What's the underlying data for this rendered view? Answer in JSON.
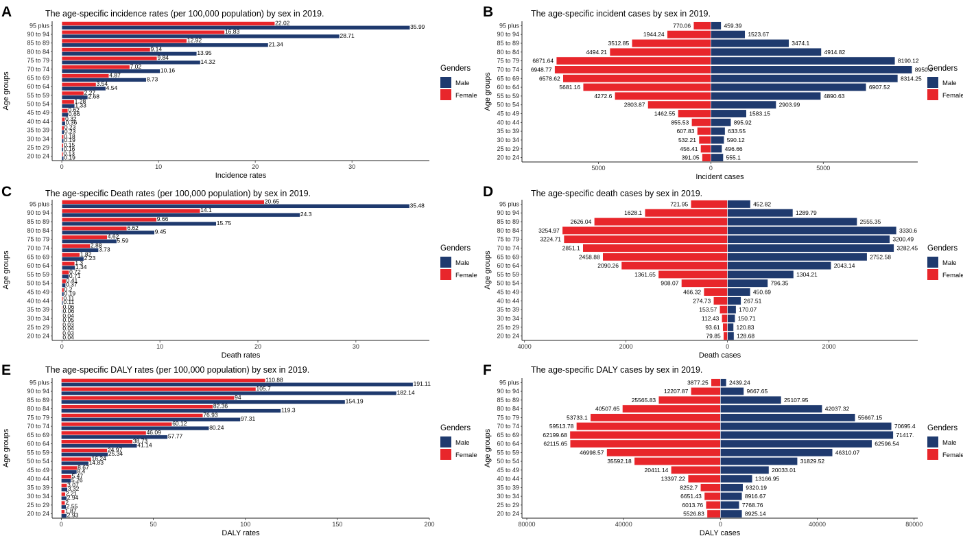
{
  "colors": {
    "male": "#1f3a6e",
    "female": "#e8262b"
  },
  "chart_data": [
    {
      "panel_label": "A",
      "type": "bar",
      "orientation": "horizontal",
      "layout": "grouped",
      "title": "The age-specific incidence rates (per 100,000 population) by sex in 2019.",
      "xlabel": "Incidence rates",
      "ylabel": "Age groups",
      "xlim": [
        -1,
        38
      ],
      "xticks": [
        0,
        10,
        20,
        30
      ],
      "xtick_labels": [
        "0",
        "10",
        "20",
        "30"
      ],
      "legend": {
        "title": "Genders",
        "items": [
          "Male",
          "Female"
        ],
        "position": "right"
      },
      "categories": [
        "95 plus",
        "90 to 94",
        "85 to 89",
        "80 to 84",
        "75 to 79",
        "70 to 74",
        "65 to 69",
        "60 to 64",
        "55 to 59",
        "50 to 54",
        "45 to 49",
        "40 to 44",
        "35 to 39",
        "30 to 34",
        "25 to 29",
        "20 to 24"
      ],
      "series": [
        {
          "name": "Female",
          "values": [
            22.02,
            16.83,
            12.92,
            9.14,
            9.84,
            7.02,
            4.87,
            3.54,
            2.27,
            1.28,
            0.62,
            0.32,
            0.23,
            0.18,
            0.15,
            0.13
          ],
          "labels": [
            "22.02",
            "16.83",
            "12.92",
            "9.14",
            "9.84",
            "7.02",
            "4.87",
            "3.54",
            "2.27",
            "1.28",
            "0.62",
            "0.32",
            "0.23",
            "0.18",
            "0.15",
            "0.13"
          ]
        },
        {
          "name": "Male",
          "values": [
            35.99,
            28.71,
            21.34,
            13.95,
            14.32,
            10.16,
            8.73,
            4.54,
            2.68,
            1.33,
            0.66,
            0.36,
            0.23,
            0.19,
            0.16,
            0.19
          ],
          "labels": [
            "35.99",
            "28.71",
            "21.34",
            "13.95",
            "14.32",
            "10.16",
            "8.73",
            "4.54",
            "2.68",
            "1.33",
            "0.66",
            "0.36",
            "0.23",
            "0.19",
            "0.16",
            "0.19"
          ]
        }
      ]
    },
    {
      "panel_label": "B",
      "type": "bar",
      "orientation": "horizontal",
      "layout": "pyramid",
      "title": "The age-specific incident cases by sex in 2019.",
      "xlabel": "Incident cases",
      "ylabel": "Age groups",
      "xlim": [
        -8400,
        9200
      ],
      "xticks": [
        -5000,
        0,
        5000
      ],
      "xtick_labels": [
        "5000",
        "0",
        "5000"
      ],
      "legend": {
        "title": "Genders",
        "items": [
          "Male",
          "Female"
        ],
        "position": "right"
      },
      "categories": [
        "95 plus",
        "90 to 94",
        "85 to 89",
        "80 to 84",
        "75 to 79",
        "70 to 74",
        "65 to 69",
        "60 to 64",
        "55 to 59",
        "50 to 54",
        "45 to 49",
        "40 to 44",
        "35 to 39",
        "30 to 34",
        "25 to 29",
        "20 to 24"
      ],
      "series": [
        {
          "name": "Female",
          "values": [
            770.06,
            1944.24,
            3512.85,
            4494.21,
            6871.64,
            6948.77,
            6578.62,
            5681.16,
            4272.6,
            2803.87,
            1462.55,
            855.53,
            607.83,
            532.21,
            456.41,
            391.05
          ],
          "labels": [
            "770.06",
            "1944.24",
            "3512.85",
            "4494.21",
            "6871.64",
            "6948.77",
            "6578.62",
            "5681.16",
            "4272.6",
            "2803.87",
            "1462.55",
            "855.53",
            "607.83",
            "532.21",
            "456.41",
            "391.05"
          ]
        },
        {
          "name": "Male",
          "values": [
            459.39,
            1523.67,
            3474.1,
            4914.82,
            8190.12,
            8950.0,
            8314.25,
            6907.52,
            4890.63,
            2903.99,
            1583.15,
            895.92,
            633.55,
            590.12,
            496.66,
            555.1
          ],
          "labels": [
            "459.39",
            "1523.67",
            "3474.1",
            "4914.82",
            "8190.12",
            "8950.0",
            "8314.25",
            "6907.52",
            "4890.63",
            "2903.99",
            "1583.15",
            "895.92",
            "633.55",
            "590.12",
            "496.66",
            "555.1"
          ]
        }
      ]
    },
    {
      "panel_label": "C",
      "type": "bar",
      "orientation": "horizontal",
      "layout": "grouped",
      "title": "The age-specific Death rates (per 100,000 population) by sex in 2019.",
      "xlabel": "Death rates",
      "ylabel": "Age groups",
      "xlim": [
        -1,
        37.5
      ],
      "xticks": [
        0,
        10,
        20,
        30
      ],
      "xtick_labels": [
        "0",
        "10",
        "20",
        "30"
      ],
      "legend": {
        "title": "Genders",
        "items": [
          "Male",
          "Female"
        ],
        "position": "right"
      },
      "categories": [
        "95 plus",
        "90 to 94",
        "85 to 89",
        "80 to 84",
        "75 to 79",
        "70 to 74",
        "65 to 69",
        "60 to 64",
        "55 to 59",
        "50 to 54",
        "45 to 49",
        "40 to 44",
        "35 to 39",
        "30 to 34",
        "25 to 29",
        "20 to 24"
      ],
      "series": [
        {
          "name": "Female",
          "values": [
            20.65,
            14.1,
            9.66,
            6.62,
            4.62,
            2.88,
            1.82,
            1.3,
            0.72,
            0.41,
            0.2,
            0.11,
            0.06,
            0.04,
            0.03,
            0.03
          ],
          "labels": [
            "20.65",
            "14.1",
            "9.66",
            "6.62",
            "4.62",
            "2.88",
            "1.82",
            "1.3",
            "0.72",
            "0.41",
            "0.2",
            "0.11",
            "0.06",
            "0.04",
            "0.03",
            "0.03"
          ]
        },
        {
          "name": "Male",
          "values": [
            35.48,
            24.3,
            15.75,
            9.45,
            5.59,
            3.73,
            2.23,
            1.34,
            0.71,
            0.37,
            0.19,
            0.11,
            0.06,
            0.05,
            0.04,
            0.04
          ],
          "labels": [
            "35.48",
            "24.3",
            "15.75",
            "9.45",
            "5.59",
            "3.73",
            "2.23",
            "1.34",
            "0.71",
            "0.37",
            "0.19",
            "0.11",
            "0.06",
            "0.05",
            "0.04",
            "0.04"
          ]
        }
      ]
    },
    {
      "panel_label": "D",
      "type": "bar",
      "orientation": "horizontal",
      "layout": "pyramid",
      "title": "The age-specific death cases by sex in 2019.",
      "xlabel": "Death cases",
      "ylabel": "Age groups",
      "xlim": [
        -4050,
        3750
      ],
      "xticks": [
        -4000,
        -2000,
        0,
        2000
      ],
      "xtick_labels": [
        "4000",
        "2000",
        "0",
        "2000"
      ],
      "legend": {
        "title": "Genders",
        "items": [
          "Male",
          "Female"
        ],
        "position": "right"
      },
      "categories": [
        "95 plus",
        "90 to 94",
        "85 to 89",
        "80 to 84",
        "75 to 79",
        "70 to 74",
        "65 to 69",
        "60 to 64",
        "55 to 59",
        "50 to 54",
        "45 to 49",
        "40 to 44",
        "35 to 39",
        "30 to 34",
        "25 to 29",
        "20 to 24"
      ],
      "series": [
        {
          "name": "Female",
          "values": [
            721.95,
            1628.1,
            2626.04,
            3254.97,
            3224.71,
            2851.1,
            2458.88,
            2090.26,
            1361.65,
            908.07,
            466.32,
            274.73,
            153.57,
            112.43,
            93.61,
            79.85
          ],
          "labels": [
            "721.95",
            "1628.1",
            "2626.04",
            "3254.97",
            "3224.71",
            "2851.1",
            "2458.88",
            "2090.26",
            "1361.65",
            "908.07",
            "466.32",
            "274.73",
            "153.57",
            "112.43",
            "93.61",
            "79.85"
          ]
        },
        {
          "name": "Male",
          "values": [
            452.82,
            1289.79,
            2555.35,
            3330.6,
            3200.49,
            3282.45,
            2752.58,
            2043.14,
            1304.21,
            796.35,
            450.69,
            267.51,
            170.07,
            150.71,
            120.83,
            128.68
          ],
          "labels": [
            "452.82",
            "1289.79",
            "2555.35",
            "3330.6",
            "3200.49",
            "3282.45",
            "2752.58",
            "2043.14",
            "1304.21",
            "796.35",
            "450.69",
            "267.51",
            "170.07",
            "150.71",
            "120.83",
            "128.68"
          ]
        }
      ]
    },
    {
      "panel_label": "E",
      "type": "bar",
      "orientation": "horizontal",
      "layout": "grouped",
      "title": "The age-specific DALY rates (per 100,000 population) by sex in 2019.",
      "xlabel": "DALY rates",
      "ylabel": "Age groups",
      "xlim": [
        -5,
        200
      ],
      "xticks": [
        0,
        50,
        100,
        150,
        200
      ],
      "xtick_labels": [
        "0",
        "50",
        "100",
        "150",
        "200"
      ],
      "legend": {
        "title": "Genders",
        "items": [
          "Male",
          "Female"
        ],
        "position": "right"
      },
      "categories": [
        "95 plus",
        "90 to 94",
        "85 to 89",
        "80 to 84",
        "75 to 79",
        "70 to 74",
        "65 to 69",
        "60 to 64",
        "55 to 59",
        "50 to 54",
        "45 to 49",
        "40 to 44",
        "35 to 39",
        "30 to 34",
        "25 to 29",
        "20 to 24"
      ],
      "series": [
        {
          "name": "Female",
          "values": [
            110.88,
            105.7,
            94,
            82.36,
            76.93,
            60.12,
            46.09,
            38.73,
            24.97,
            16.24,
            8.67,
            5.47,
            3.07,
            2.21,
            2,
            1.87
          ],
          "labels": [
            "110.88",
            "105.7",
            "94",
            "82.36",
            "76.93",
            "60.12",
            "46.09",
            "38.73",
            "24.97",
            "16.24",
            "8.67",
            "5.47",
            "3.07",
            "2.21",
            "2",
            "1.87"
          ]
        },
        {
          "name": "Male",
          "values": [
            191.11,
            182.14,
            154.19,
            119.3,
            97.31,
            80.24,
            57.77,
            41.14,
            25.34,
            14.83,
            8.4,
            5.26,
            3.32,
            2.94,
            2.55,
            2.93
          ],
          "labels": [
            "191.11",
            "182.14",
            "154.19",
            "119.3",
            "97.31",
            "80.24",
            "57.77",
            "41.14",
            "25.34",
            "14.83",
            "8.4",
            "5.26",
            "3.32",
            "2.94",
            "2.55",
            "2.93"
          ]
        }
      ]
    },
    {
      "panel_label": "F",
      "type": "bar",
      "orientation": "horizontal",
      "layout": "pyramid",
      "title": "The age-specific DALY cases by sex in 2019.",
      "xlabel": "DALY cases",
      "ylabel": "Age groups",
      "xlim": [
        -82000,
        81500
      ],
      "xticks": [
        -80000,
        -40000,
        0,
        40000,
        80000
      ],
      "xtick_labels": [
        "80000",
        "40000",
        "0",
        "40000",
        "80000"
      ],
      "legend": {
        "title": "Genders",
        "items": [
          "Male",
          "Female"
        ],
        "position": "right"
      },
      "categories": [
        "95 plus",
        "90 to 94",
        "85 to 89",
        "80 to 84",
        "75 to 79",
        "70 to 74",
        "65 to 69",
        "60 to 64",
        "55 to 59",
        "50 to 54",
        "45 to 49",
        "40 to 44",
        "35 to 39",
        "30 to 34",
        "25 to 29",
        "20 to 24"
      ],
      "series": [
        {
          "name": "Female",
          "values": [
            3877.25,
            12207.87,
            25565.83,
            40507.65,
            53733.1,
            59513.78,
            62199.68,
            62115.65,
            46998.57,
            35592.18,
            20411.14,
            13397.22,
            8252.7,
            6651.43,
            6013.76,
            5526.83
          ],
          "labels": [
            "3877.25",
            "12207.87",
            "25565.83",
            "40507.65",
            "53733.1",
            "59513.78",
            "62199.68",
            "62115.65",
            "46998.57",
            "35592.18",
            "20411.14",
            "13397.22",
            "8252.7",
            "6651.43",
            "6013.76",
            "5526.83"
          ]
        },
        {
          "name": "Male",
          "values": [
            2439.24,
            9667.65,
            25107.95,
            42037.32,
            55667.15,
            70695.4,
            71417,
            62596.54,
            46310.07,
            31829.52,
            20033.01,
            13166.95,
            9320.19,
            8916.67,
            7768.76,
            8925.14
          ],
          "labels": [
            "2439.24",
            "9667.65",
            "25107.95",
            "42037.32",
            "55667.15",
            "70695.4",
            "71417.",
            "62596.54",
            "46310.07",
            "31829.52",
            "20033.01",
            "13166.95",
            "9320.19",
            "8916.67",
            "7768.76",
            "8925.14"
          ]
        }
      ]
    }
  ]
}
